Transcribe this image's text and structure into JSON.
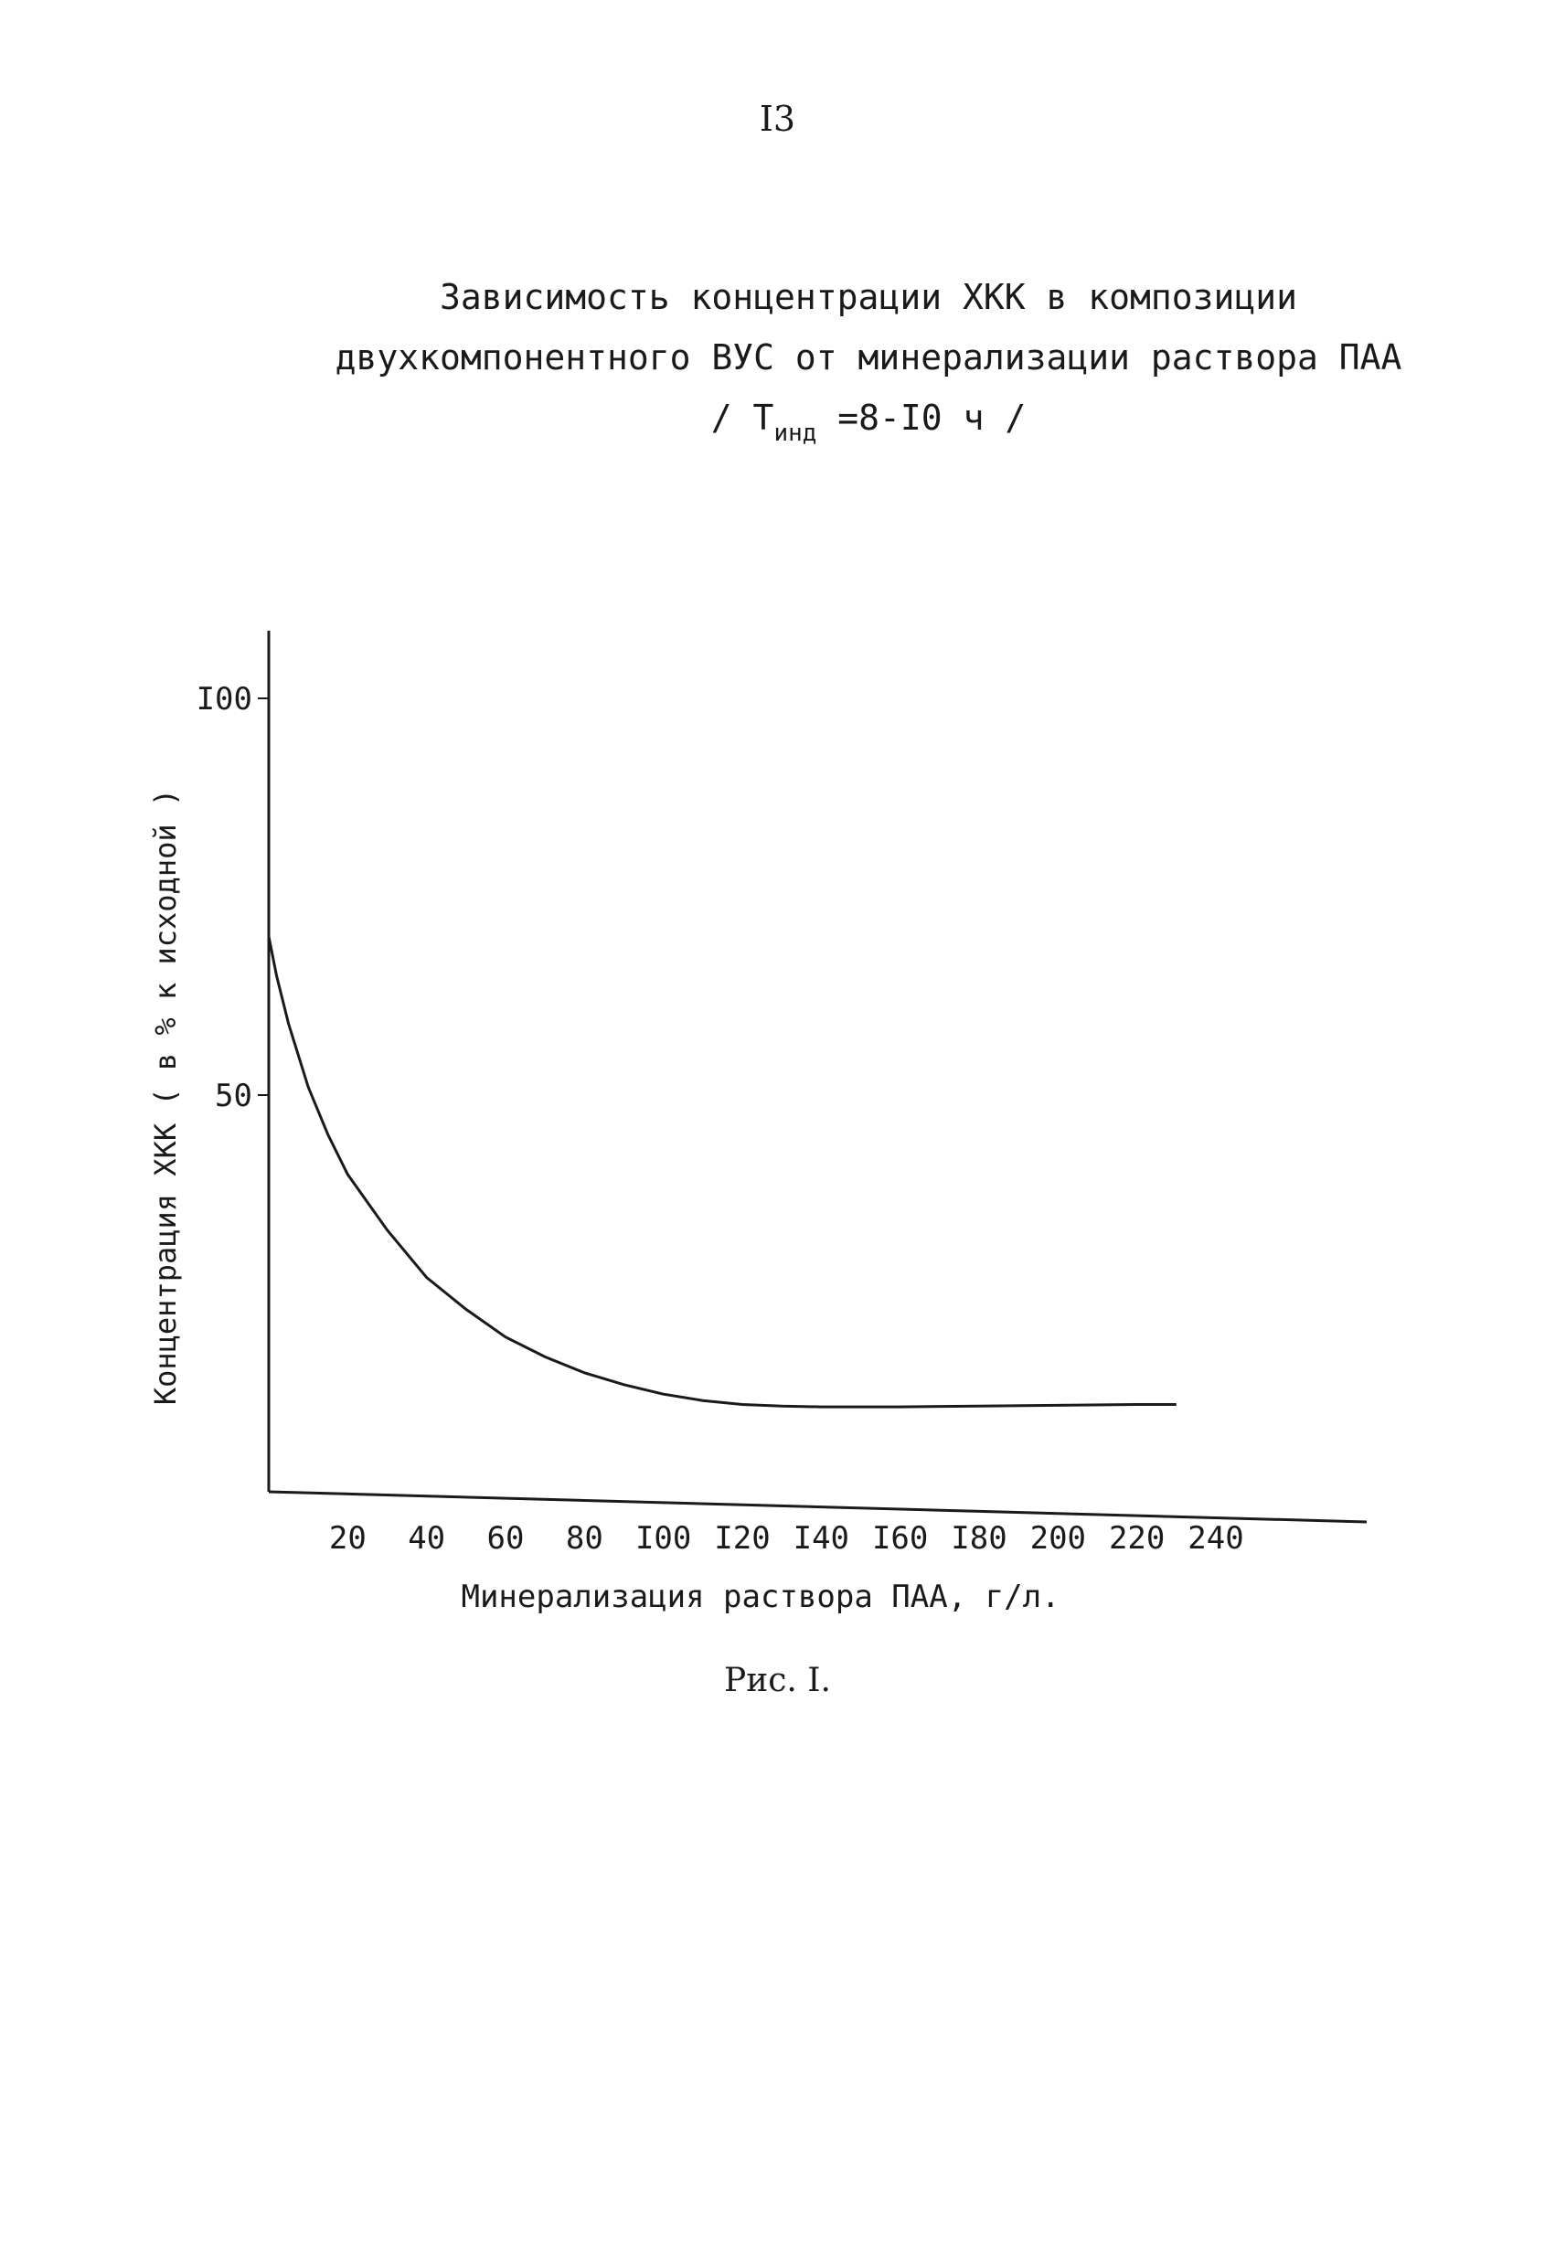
{
  "page_number": "I3",
  "title": {
    "line1": "Зависимость концентрации ХКК в композиции",
    "line2": "двухкомпонентного ВУС от минерализации раствора ПАА",
    "line3_prefix": "/ T",
    "line3_subscript": "инд",
    "line3_suffix": "=8-I0 ч /"
  },
  "caption": "Рис. I.",
  "chart_data": {
    "type": "line",
    "xlabel": "Минерализация раствора ПАА, г/л.",
    "ylabel": "Концентрация ХКК ( в % к исходной )",
    "xlim": [
      0,
      240
    ],
    "ylim": [
      0,
      110
    ],
    "x_tick_labels": [
      "20",
      "40",
      "60",
      "80",
      "I00",
      "I20",
      "I40",
      "I60",
      "I80",
      "200",
      "220",
      "240"
    ],
    "x_tick_values": [
      20,
      40,
      60,
      80,
      100,
      120,
      140,
      160,
      180,
      200,
      220,
      240
    ],
    "y_tick_labels": [
      "50",
      "I00"
    ],
    "y_tick_values": [
      50,
      100
    ],
    "grid": false,
    "series": [
      {
        "x": [
          0,
          2,
          5,
          10,
          15,
          20,
          30,
          40,
          50,
          60,
          70,
          80,
          90,
          100,
          110,
          120,
          130,
          140,
          160,
          180,
          200,
          220,
          230
        ],
        "y": [
          70,
          65,
          59,
          51,
          45,
          40,
          33,
          27,
          23,
          19.5,
          17,
          15,
          13.5,
          12.3,
          11.5,
          11,
          10.8,
          10.7,
          10.7,
          10.8,
          10.9,
          11,
          11
        ]
      }
    ]
  }
}
